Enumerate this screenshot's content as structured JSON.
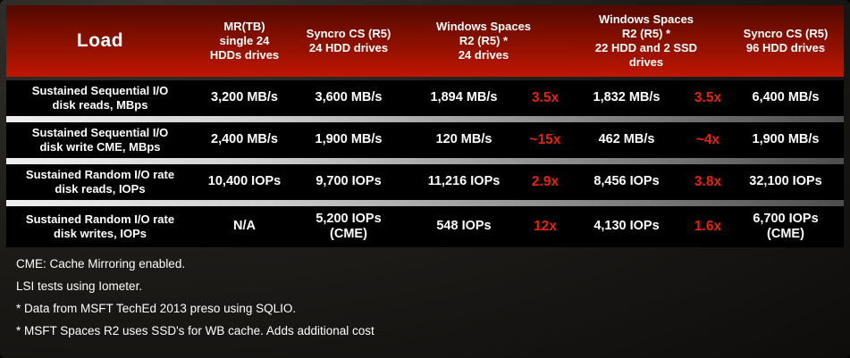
{
  "chart_data": {
    "type": "table",
    "header": {
      "load": "Load",
      "columns": [
        "MR(TB)\nsingle 24\nHDDs drives",
        "Syncro CS (R5)\n24 HDD drives",
        "Windows Spaces\nR2 (R5) *\n24 drives",
        "Windows Spaces\nR2 (R5) *\n22 HDD and 2 SSD\ndrives",
        "Syncro CS (R5)\n96 HDD drives"
      ]
    },
    "rows": [
      {
        "label": "Sustained Sequential I/O\ndisk reads, MBps",
        "mr": "3,200 MB/s",
        "syncro24": "3,600 MB/s",
        "spaces24": "1,894 MB/s",
        "spaces24_mult": "3.5x",
        "spaces22": "1,832 MB/s",
        "spaces22_mult": "3.5x",
        "syncro96": "6,400 MB/s"
      },
      {
        "label": "Sustained Sequential I/O\ndisk write CME, MBps",
        "mr": "2,400 MB/s",
        "syncro24": "1,900 MB/s",
        "spaces24": "120 MB/s",
        "spaces24_mult": "~15x",
        "spaces22": "462 MB/s",
        "spaces22_mult": "~4x",
        "syncro96": "1,900 MB/s"
      },
      {
        "label": "Sustained Random I/O rate\ndisk reads, IOPs",
        "mr": "10,400 IOPs",
        "syncro24": "9,700 IOPs",
        "spaces24": "11,216 IOPs",
        "spaces24_mult": "2.9x",
        "spaces22": "8,456 IOPs",
        "spaces22_mult": "3.8x",
        "syncro96": "32,100 IOPs"
      },
      {
        "label": "Sustained Random I/O rate\ndisk writes, IOPs",
        "mr": "N/A",
        "syncro24": "5,200 IOPs\n(CME)",
        "spaces24": "548 IOPs",
        "spaces24_mult": "12x",
        "spaces22": "4,130 IOPs",
        "spaces22_mult": "1.6x",
        "syncro96": "6,700 IOPs\n(CME)"
      }
    ]
  },
  "notes": [
    "CME: Cache Mirroring enabled.",
    "LSI tests using Iometer.",
    "* Data from MSFT TechEd 2013 preso using SQLIO.",
    "* MSFT Spaces R2 uses SSD's for WB cache. Adds additional cost"
  ],
  "colors": {
    "header_gradient_top": "#520900",
    "header_gradient_bottom": "#c01600",
    "multiplier_red": "#e82408",
    "row_background": "#000000",
    "text": "#ffffff"
  }
}
